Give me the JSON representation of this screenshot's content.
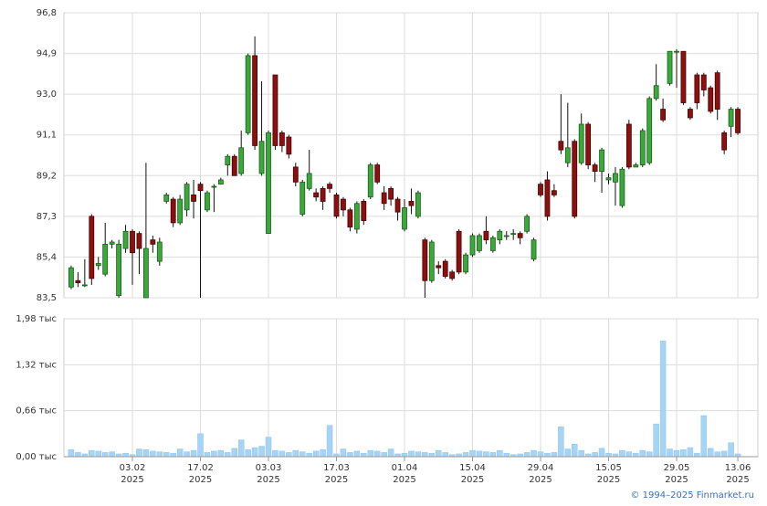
{
  "chart_data": [
    {
      "type": "candlestick",
      "open": [
        84.0,
        84.3,
        84.1,
        87.3,
        85.0,
        84.6,
        86.0,
        83.6,
        85.8,
        86.6,
        86.5,
        83.5,
        86.2,
        85.2,
        88.0,
        88.1,
        87.0,
        87.6,
        88.3,
        88.8,
        87.6,
        88.7,
        88.8,
        89.7,
        90.1,
        89.3,
        91.2,
        94.8,
        89.3,
        86.5,
        93.9,
        91.2,
        91.0,
        89.6,
        87.4,
        88.6,
        88.4,
        88.6,
        88.8,
        88.3,
        88.1,
        87.6,
        86.7,
        88.0,
        88.2,
        89.7,
        88.4,
        88.6,
        88.1,
        86.7,
        88.0,
        87.3,
        86.2,
        84.3,
        85.0,
        85.2,
        84.7,
        86.6,
        84.7,
        85.5,
        85.7,
        86.6,
        85.7,
        86.2,
        86.4,
        86.5,
        86.5,
        86.6,
        85.3,
        88.8,
        89.0,
        88.5,
        90.8,
        89.8,
        90.8,
        89.8,
        91.6,
        89.7,
        89.4,
        89.0,
        88.9,
        87.8,
        91.6,
        89.6,
        89.7,
        89.8,
        92.8,
        92.3,
        93.5,
        95.0,
        95.0,
        92.3,
        93.9,
        93.9,
        93.3,
        94.0,
        91.2,
        91.5,
        92.3
      ],
      "high": [
        85.0,
        84.7,
        85.3,
        87.4,
        85.4,
        87.0,
        86.2,
        86.2,
        86.9,
        86.7,
        86.6,
        89.8,
        86.4,
        86.3,
        88.4,
        88.2,
        88.3,
        88.9,
        89.0,
        88.9,
        88.5,
        88.8,
        89.1,
        90.2,
        90.2,
        91.3,
        94.9,
        95.7,
        93.6,
        91.3,
        93.9,
        91.3,
        91.1,
        89.8,
        89.0,
        90.4,
        88.6,
        88.7,
        88.9,
        88.4,
        88.2,
        87.7,
        88.0,
        88.1,
        89.8,
        89.8,
        88.7,
        88.7,
        88.2,
        88.1,
        88.6,
        88.5,
        86.3,
        86.2,
        85.2,
        85.3,
        84.8,
        86.7,
        85.6,
        86.5,
        86.5,
        87.3,
        86.4,
        86.7,
        86.6,
        86.7,
        86.6,
        87.4,
        86.3,
        88.9,
        89.4,
        88.8,
        93.0,
        92.6,
        90.9,
        92.1,
        91.7,
        89.8,
        90.5,
        89.3,
        89.6,
        89.6,
        91.8,
        89.8,
        91.4,
        92.9,
        94.4,
        92.8,
        95.0,
        95.1,
        95.0,
        92.4,
        94.0,
        94.0,
        93.4,
        94.1,
        91.3,
        92.4,
        92.4
      ],
      "low": [
        83.9,
        84.0,
        84.0,
        84.1,
        84.8,
        84.5,
        85.8,
        83.5,
        85.6,
        84.1,
        84.6,
        83.5,
        85.6,
        85.0,
        87.9,
        86.8,
        86.9,
        87.3,
        87.2,
        83.5,
        87.5,
        87.5,
        88.8,
        89.2,
        89.2,
        89.2,
        91.1,
        90.4,
        89.2,
        86.5,
        90.4,
        90.3,
        90.0,
        88.7,
        87.3,
        88.5,
        88.0,
        87.6,
        88.4,
        87.2,
        87.3,
        86.6,
        86.5,
        86.9,
        88.1,
        88.8,
        87.6,
        87.8,
        87.1,
        86.6,
        87.4,
        87.2,
        83.5,
        84.2,
        84.6,
        84.4,
        84.3,
        84.6,
        84.6,
        85.4,
        85.6,
        86.0,
        85.6,
        86.0,
        86.2,
        86.2,
        86.0,
        86.5,
        85.2,
        88.2,
        87.1,
        88.2,
        90.2,
        89.6,
        87.2,
        89.7,
        89.5,
        88.9,
        88.4,
        88.8,
        87.8,
        87.7,
        89.5,
        89.6,
        89.6,
        89.7,
        92.7,
        91.7,
        93.4,
        93.3,
        92.5,
        91.8,
        92.3,
        92.9,
        92.1,
        91.8,
        90.2,
        91.0,
        91.1
      ],
      "close": [
        84.9,
        84.2,
        84.1,
        84.4,
        85.1,
        86.0,
        86.1,
        86.0,
        86.6,
        85.6,
        85.8,
        85.8,
        86.0,
        86.1,
        88.3,
        87.0,
        88.1,
        88.8,
        88.0,
        88.5,
        88.4,
        88.7,
        89.0,
        90.1,
        89.2,
        90.5,
        94.8,
        90.6,
        90.8,
        91.2,
        90.6,
        90.6,
        90.2,
        88.9,
        88.9,
        89.3,
        88.2,
        88.0,
        88.6,
        87.3,
        87.6,
        86.8,
        87.9,
        87.1,
        89.7,
        88.9,
        87.9,
        88.1,
        87.5,
        87.7,
        87.8,
        88.4,
        84.3,
        86.1,
        84.9,
        84.5,
        84.4,
        84.7,
        85.5,
        86.4,
        86.4,
        86.2,
        86.3,
        86.6,
        86.4,
        86.5,
        86.3,
        87.3,
        86.2,
        88.3,
        87.3,
        88.3,
        90.4,
        90.5,
        87.3,
        91.6,
        89.7,
        89.4,
        90.4,
        89.1,
        89.3,
        89.5,
        89.6,
        89.7,
        91.3,
        92.8,
        93.4,
        91.8,
        95.0,
        95.0,
        92.6,
        91.9,
        92.6,
        93.2,
        92.2,
        92.3,
        90.4,
        92.3,
        91.2
      ],
      "up_color": "#3aa83a",
      "down_color": "#8b1010",
      "ylim": [
        83.5,
        96.8
      ],
      "yticks": [
        {
          "value": 83.5,
          "label": "83,5"
        },
        {
          "value": 85.4,
          "label": "85,4"
        },
        {
          "value": 87.3,
          "label": "87,3"
        },
        {
          "value": 89.2,
          "label": "89,2"
        },
        {
          "value": 91.1,
          "label": "91,1"
        },
        {
          "value": 93.0,
          "label": "93,0"
        },
        {
          "value": 94.9,
          "label": "94,9"
        },
        {
          "value": 96.8,
          "label": "96,8"
        }
      ],
      "grid": true
    },
    {
      "type": "bar",
      "categories": [
        null,
        null,
        null,
        null,
        null,
        null,
        null,
        null,
        null,
        "03.02",
        null,
        null,
        null,
        null,
        null,
        null,
        null,
        null,
        null,
        "17.02",
        null,
        null,
        null,
        null,
        null,
        null,
        null,
        null,
        null,
        "03.03",
        null,
        null,
        null,
        null,
        null,
        null,
        null,
        null,
        null,
        "17.03",
        null,
        null,
        null,
        null,
        null,
        null,
        null,
        null,
        null,
        "01.04",
        null,
        null,
        null,
        null,
        null,
        null,
        null,
        null,
        null,
        "15.04",
        null,
        null,
        null,
        null,
        null,
        null,
        null,
        null,
        null,
        "29.04",
        null,
        null,
        null,
        null,
        null,
        null,
        null,
        null,
        null,
        "15.05",
        null,
        null,
        null,
        null,
        null,
        null,
        null,
        null,
        null,
        "29.05",
        null,
        null,
        null,
        null,
        null,
        null,
        null,
        null,
        "13.06"
      ],
      "x_sublabel": "2025",
      "values": [
        100,
        60,
        40,
        90,
        80,
        60,
        70,
        40,
        50,
        30,
        110,
        100,
        80,
        70,
        60,
        50,
        110,
        70,
        90,
        330,
        60,
        80,
        90,
        60,
        120,
        240,
        100,
        130,
        150,
        280,
        90,
        80,
        60,
        90,
        70,
        50,
        80,
        100,
        450,
        40,
        110,
        60,
        80,
        50,
        90,
        80,
        60,
        110,
        40,
        50,
        80,
        70,
        60,
        50,
        90,
        60,
        30,
        40,
        60,
        90,
        80,
        70,
        60,
        90,
        50,
        30,
        40,
        60,
        90,
        70,
        50,
        60,
        430,
        110,
        180,
        90,
        40,
        60,
        120,
        50,
        40,
        90,
        70,
        50,
        90,
        70,
        470,
        1660,
        110,
        90,
        100,
        130,
        50,
        590,
        120,
        70,
        80,
        200,
        40
      ],
      "color": "#a6d4f7",
      "ylim": [
        0,
        1980
      ],
      "yticks": [
        {
          "value": 0,
          "label": "0,00 тыс"
        },
        {
          "value": 660,
          "label": "0,66 тыс"
        },
        {
          "value": 1320,
          "label": "1,32 тыс"
        },
        {
          "value": 1980,
          "label": "1,98 тыс"
        }
      ],
      "grid": true
    },
    {
      "type": "footer",
      "text": "© 1994–2025 Finmarket.ru"
    }
  ]
}
